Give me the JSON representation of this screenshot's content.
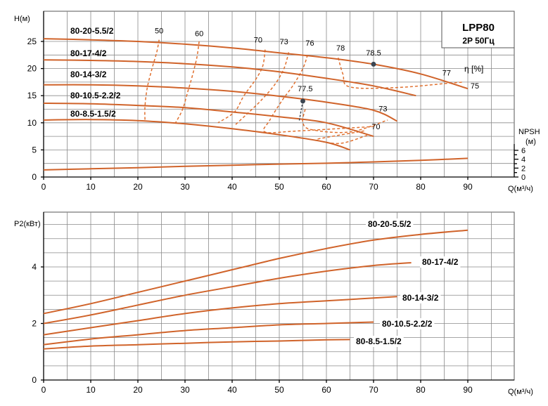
{
  "colors": {
    "curve": "#d0632a",
    "grid": "#8a8a8a",
    "point": "#3b4652"
  },
  "chart_data": [
    {
      "type": "line",
      "title": "LPP80",
      "subtitle": "2P 50Гц",
      "xlabel": "Q(м³/ч)",
      "ylabel": "H(м)",
      "y2label": "NPSH (м)",
      "eta_label": "η [%]",
      "xlim": [
        0,
        90
      ],
      "ylim": [
        0,
        27
      ],
      "xticks": [
        0,
        10,
        20,
        30,
        40,
        50,
        60,
        70,
        80,
        90
      ],
      "yticks": [
        0,
        5,
        10,
        15,
        20,
        25
      ],
      "y2ticks": [
        0,
        2,
        4,
        6
      ],
      "grid": true,
      "series": [
        {
          "name": "80-20-5.5/2",
          "x": [
            0,
            10,
            20,
            30,
            40,
            50,
            60,
            70,
            80,
            90
          ],
          "y": [
            25.5,
            25.3,
            25,
            24.5,
            23.8,
            22.9,
            22,
            20.8,
            19,
            16.3
          ]
        },
        {
          "name": "80-17-4/2",
          "x": [
            0,
            10,
            20,
            30,
            40,
            50,
            60,
            70,
            79
          ],
          "y": [
            21.6,
            21.5,
            21.3,
            20.9,
            20.3,
            19.4,
            18.2,
            16.8,
            15
          ]
        },
        {
          "name": "80-14-3/2",
          "x": [
            0,
            10,
            20,
            30,
            40,
            50,
            60,
            70,
            75
          ],
          "y": [
            17,
            17,
            16.8,
            16.4,
            15.8,
            14.9,
            13.8,
            12.3,
            10.3
          ]
        },
        {
          "name": "80-10.5-2.2/2",
          "x": [
            0,
            10,
            20,
            30,
            40,
            50,
            60,
            70
          ],
          "y": [
            13.6,
            13.5,
            13.2,
            12.8,
            12,
            11.1,
            10,
            7.5
          ]
        },
        {
          "name": "80-8.5-1.5/2",
          "x": [
            0,
            10,
            20,
            30,
            40,
            50,
            60,
            65
          ],
          "y": [
            10.5,
            10.6,
            10.4,
            9.8,
            8.9,
            7.8,
            6.4,
            5
          ]
        }
      ],
      "npsh": {
        "x": [
          0,
          10,
          20,
          30,
          40,
          50,
          60,
          70,
          80,
          90
        ],
        "y": [
          1.6,
          1.85,
          2.1,
          2.4,
          2.65,
          2.9,
          3.1,
          3.4,
          3.75,
          4.2
        ]
      },
      "efficiency_labels": [
        {
          "text": "50",
          "x": 24.5,
          "y": 26.5
        },
        {
          "text": "60",
          "x": 33,
          "y": 26
        },
        {
          "text": "70",
          "x": 45.5,
          "y": 24.8
        },
        {
          "text": "73",
          "x": 51,
          "y": 24.5
        },
        {
          "text": "76",
          "x": 56.5,
          "y": 24.2
        },
        {
          "text": "78",
          "x": 63,
          "y": 23.3
        },
        {
          "text": "78.5",
          "x": 70,
          "y": 22.4
        },
        {
          "text": "77.5",
          "x": 55.5,
          "y": 15.8
        },
        {
          "text": "77",
          "x": 85.5,
          "y": 18.7
        },
        {
          "text": "75",
          "x": 91.5,
          "y": 16.3
        },
        {
          "text": "73",
          "x": 72,
          "y": 12.1
        },
        {
          "text": "70",
          "x": 70.5,
          "y": 8.8
        }
      ],
      "best_points": [
        {
          "x": 70,
          "y": 20.8
        },
        {
          "x": 55,
          "y": 14
        }
      ]
    },
    {
      "type": "line",
      "xlabel": "Q(м³/ч)",
      "ylabel": "P2(кВт)",
      "xlim": [
        0,
        90
      ],
      "ylim": [
        0,
        5.7
      ],
      "xticks": [
        0,
        10,
        20,
        30,
        40,
        50,
        60,
        70,
        80,
        90
      ],
      "yticks": [
        0,
        2,
        4
      ],
      "grid": true,
      "series": [
        {
          "name": "80-20-5.5/2",
          "x": [
            0,
            10,
            20,
            30,
            40,
            50,
            60,
            70,
            80,
            90
          ],
          "y": [
            2.35,
            2.7,
            3.1,
            3.5,
            3.9,
            4.3,
            4.65,
            4.95,
            5.15,
            5.3
          ]
        },
        {
          "name": "80-17-4/2",
          "x": [
            0,
            10,
            20,
            30,
            40,
            50,
            60,
            70,
            78
          ],
          "y": [
            2.0,
            2.3,
            2.65,
            3.0,
            3.3,
            3.6,
            3.85,
            4.05,
            4.15
          ]
        },
        {
          "name": "80-14-3/2",
          "x": [
            0,
            10,
            20,
            30,
            40,
            50,
            60,
            70,
            75
          ],
          "y": [
            1.6,
            1.85,
            2.1,
            2.35,
            2.55,
            2.7,
            2.8,
            2.9,
            2.95
          ]
        },
        {
          "name": "80-10.5-2.2/2",
          "x": [
            0,
            10,
            20,
            30,
            40,
            50,
            60,
            70
          ],
          "y": [
            1.25,
            1.45,
            1.6,
            1.75,
            1.85,
            1.95,
            2.0,
            2.05
          ]
        },
        {
          "name": "80-8.5-1.5/2",
          "x": [
            0,
            10,
            20,
            30,
            40,
            50,
            60,
            65
          ],
          "y": [
            1.1,
            1.2,
            1.25,
            1.3,
            1.35,
            1.38,
            1.42,
            1.43
          ]
        }
      ]
    }
  ]
}
